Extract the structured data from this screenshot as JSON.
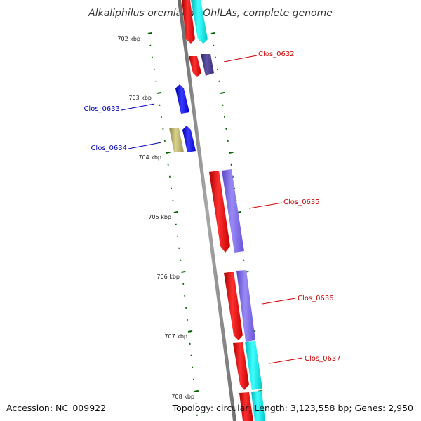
{
  "title": "Alkaliphilus oremlandii OhILAs, complete genome",
  "footer": {
    "accession": "Accession: NC_009922",
    "topology": "Topology: circular; Length: 3,123,558 bp; Genes: 2,950"
  },
  "ruler": {
    "ticks": [
      "702 kbp",
      "703 kbp",
      "704 kbp",
      "705 kbp",
      "706 kbp",
      "707 kbp",
      "708 kbp"
    ]
  },
  "gene_labels": [
    {
      "text": "Clos_0632",
      "color": "#cc0000"
    },
    {
      "text": "Clos_0633",
      "color": "#0000bb"
    },
    {
      "text": "Clos_0634",
      "color": "#0000bb"
    },
    {
      "text": "Clos_0635",
      "color": "#cc0000"
    },
    {
      "text": "Clos_0636",
      "color": "#cc0000"
    },
    {
      "text": "Clos_0637",
      "color": "#cc0000"
    }
  ],
  "colors": {
    "red": "#ff0000",
    "cyan": "#00ffff",
    "purple": "#7b68ee",
    "dark_purple": "#483d8b",
    "blue": "#0000ff",
    "olive": "#bdb76b",
    "backbone": "#888888",
    "tick": "#006400"
  }
}
